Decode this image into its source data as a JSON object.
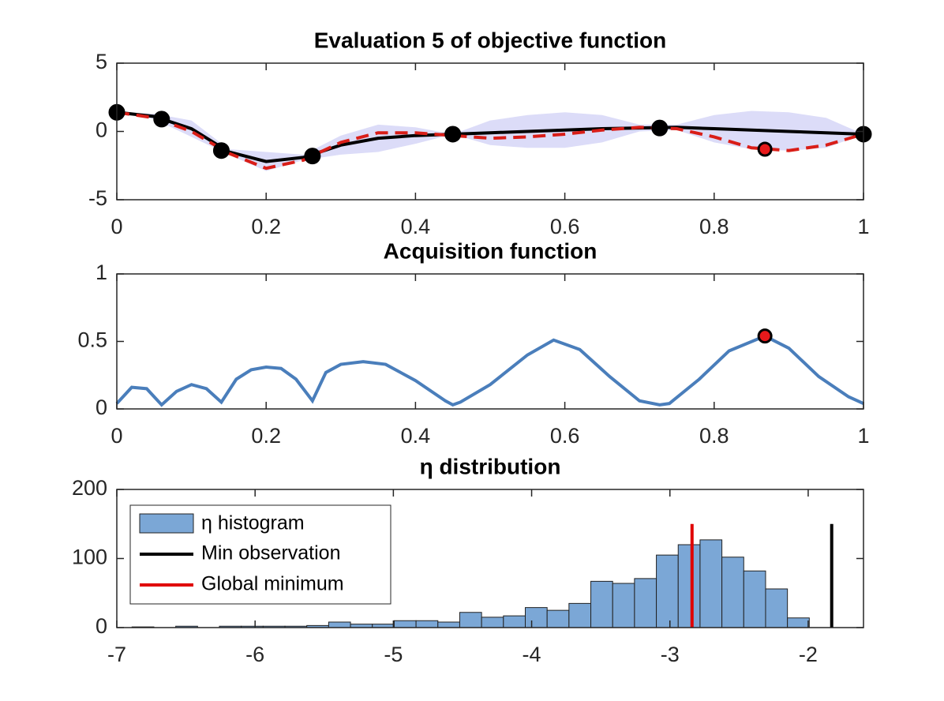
{
  "chart_data": [
    {
      "type": "line",
      "title": "Evaluation 5 of objective function",
      "xlim": [
        0,
        1
      ],
      "ylim": [
        -5,
        5
      ],
      "xticks": [
        0,
        0.2,
        0.4,
        0.6,
        0.8,
        1
      ],
      "yticks": [
        -5,
        0,
        5
      ],
      "x": [
        0,
        0.05,
        0.1,
        0.15,
        0.2,
        0.25,
        0.3,
        0.35,
        0.4,
        0.45,
        0.5,
        0.55,
        0.6,
        0.65,
        0.7,
        0.75,
        0.8,
        0.85,
        0.9,
        0.95,
        1
      ],
      "band": {
        "color": "#dcdcf8",
        "upper": [
          1.4,
          1.3,
          0.8,
          -1.3,
          -1.5,
          -1.7,
          -0.3,
          0.5,
          0.3,
          -0.2,
          0.8,
          1.2,
          1.4,
          1.2,
          0.5,
          0.5,
          1.2,
          1.5,
          1.4,
          1.0,
          -0.2
        ],
        "lower": [
          1.4,
          0.9,
          -0.4,
          -1.7,
          -2.9,
          -2.1,
          -1.7,
          -1.5,
          -0.9,
          -0.2,
          -1.0,
          -1.2,
          -1.2,
          -0.8,
          0.0,
          0.1,
          -0.8,
          -1.3,
          -1.4,
          -1.2,
          -0.2
        ]
      },
      "series": [
        {
          "color": "#000000",
          "dashed": false,
          "values": [
            1.4,
            1.1,
            0.2,
            -1.5,
            -2.2,
            -1.9,
            -1.0,
            -0.5,
            -0.3,
            -0.2,
            -0.1,
            0.0,
            0.1,
            0.2,
            0.25,
            0.3,
            0.2,
            0.1,
            0.0,
            -0.1,
            -0.2
          ]
        },
        {
          "color": "#d91e18",
          "dashed": true,
          "values": [
            1.4,
            1.0,
            0.0,
            -1.6,
            -2.7,
            -2.1,
            -0.8,
            -0.1,
            -0.1,
            -0.3,
            -0.5,
            -0.4,
            -0.2,
            0.1,
            0.3,
            0.2,
            -0.4,
            -1.2,
            -1.4,
            -1.0,
            -0.2
          ]
        }
      ],
      "points": {
        "color": "#000000",
        "x": [
          0,
          0.06,
          0.14,
          0.262,
          0.45,
          0.727,
          1
        ],
        "values": [
          1.4,
          0.9,
          -1.4,
          -1.8,
          -0.2,
          0.25,
          -0.2
        ]
      },
      "next_point": {
        "color": "#e8191b",
        "x": 0.868,
        "value": -1.3
      }
    },
    {
      "type": "line",
      "title": "Acquisition function",
      "xlim": [
        0,
        1
      ],
      "ylim": [
        0,
        1
      ],
      "xticks": [
        0,
        0.2,
        0.4,
        0.6,
        0.8,
        1
      ],
      "yticks": [
        0,
        0.5,
        1
      ],
      "x": [
        0,
        0.02,
        0.04,
        0.06,
        0.08,
        0.1,
        0.12,
        0.14,
        0.16,
        0.18,
        0.2,
        0.22,
        0.24,
        0.262,
        0.28,
        0.3,
        0.33,
        0.36,
        0.4,
        0.44,
        0.45,
        0.46,
        0.5,
        0.55,
        0.585,
        0.62,
        0.66,
        0.7,
        0.727,
        0.74,
        0.78,
        0.82,
        0.868,
        0.9,
        0.94,
        0.98,
        1
      ],
      "series": [
        {
          "color": "#4a7ebb",
          "dashed": false,
          "values": [
            0.04,
            0.16,
            0.15,
            0.03,
            0.13,
            0.18,
            0.15,
            0.05,
            0.22,
            0.29,
            0.31,
            0.3,
            0.22,
            0.06,
            0.27,
            0.33,
            0.35,
            0.33,
            0.21,
            0.06,
            0.03,
            0.05,
            0.18,
            0.4,
            0.51,
            0.44,
            0.24,
            0.06,
            0.03,
            0.04,
            0.22,
            0.43,
            0.54,
            0.45,
            0.24,
            0.09,
            0.04
          ]
        }
      ],
      "next_point": {
        "color": "#e8191b",
        "x": 0.868,
        "value": 0.54
      }
    },
    {
      "type": "histogram",
      "title": "η distribution",
      "xlim": [
        -7,
        -1.6
      ],
      "ylim": [
        0,
        200
      ],
      "xticks": [
        -7,
        -6,
        -5,
        -4,
        -3,
        -2
      ],
      "yticks": [
        0,
        100,
        200
      ],
      "hist_name": "η histogram",
      "color": "#7ba7d6",
      "legend": "upper left",
      "bins": [
        -6.89,
        -6.732,
        -6.574,
        -6.416,
        -6.258,
        -6.1,
        -5.942,
        -5.784,
        -5.626,
        -5.468,
        -5.31,
        -5.152,
        -4.994,
        -4.836,
        -4.678,
        -4.52,
        -4.362,
        -4.204,
        -4.046,
        -3.888,
        -3.73,
        -3.572,
        -3.414,
        -3.256,
        -3.098,
        -2.94,
        -2.782,
        -2.624,
        -2.466,
        -2.308,
        -2.15,
        -1.992
      ],
      "values": [
        1,
        0,
        2,
        0,
        2,
        2,
        2,
        2,
        3,
        8,
        5,
        5,
        10,
        10,
        8,
        22,
        15,
        17,
        29,
        25,
        35,
        67,
        64,
        71,
        105,
        120,
        127,
        102,
        82,
        56,
        14
      ],
      "vlines": [
        {
          "name": "Min observation",
          "x": -1.83,
          "height": 150,
          "color": "#000000"
        },
        {
          "name": "Global minimum",
          "x": -2.84,
          "height": 150,
          "color": "#e00000"
        }
      ]
    }
  ]
}
